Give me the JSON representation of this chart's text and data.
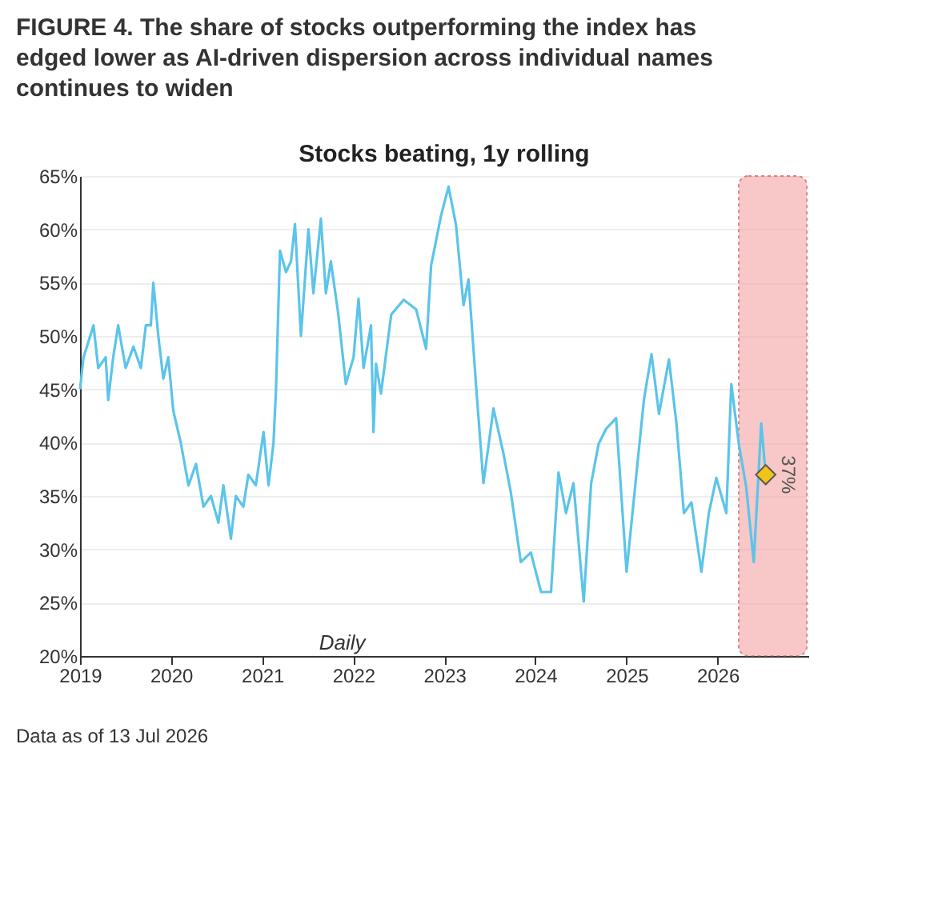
{
  "chart_data": {
    "type": "line",
    "title": "FIGURE 4. The share of stocks outperforming the index has edged lower as AI-driven dispersion across individual names continues to widen",
    "subtitle": "Stocks beating, 1y rolling",
    "series": [
      {
        "color": "#5bc4ea",
        "marker": "none",
        "line_style": "solid",
        "x": [
          "2019-01-01",
          "2019-01-15",
          "2019-02-24",
          "2019-03-15",
          "2019-04-14",
          "2019-04-24",
          "2019-05-14",
          "2019-06-03",
          "2019-07-03",
          "2019-08-03",
          "2019-09-02",
          "2019-09-22",
          "2019-10-12",
          "2019-10-22",
          "2019-11-11",
          "2019-12-01",
          "2019-12-21",
          "2020-01-10",
          "2020-02-09",
          "2020-03-11",
          "2020-04-10",
          "2020-05-10",
          "2020-06-09",
          "2020-07-09",
          "2020-07-29",
          "2020-08-28",
          "2020-09-17",
          "2020-10-17",
          "2020-11-06",
          "2020-12-06",
          "2021-01-06",
          "2021-01-26",
          "2021-02-15",
          "2021-02-25",
          "2021-03-13",
          "2021-04-06",
          "2021-04-26",
          "2021-05-12",
          "2021-06-05",
          "2021-07-05",
          "2021-07-25",
          "2021-08-24",
          "2021-09-13",
          "2021-10-03",
          "2021-11-02",
          "2021-12-02",
          "2022-01-02",
          "2022-01-22",
          "2022-02-11",
          "2022-03-13",
          "2022-03-23",
          "2022-04-02",
          "2022-04-22",
          "2022-06-02",
          "2022-07-22",
          "2022-09-10",
          "2022-10-20",
          "2022-11-09",
          "2022-12-19",
          "2023-01-18",
          "2023-02-17",
          "2023-03-19",
          "2023-04-08",
          "2023-05-08",
          "2023-06-07",
          "2023-07-17",
          "2023-08-26",
          "2023-09-25",
          "2023-11-04",
          "2023-12-14",
          "2024-01-24",
          "2024-03-04",
          "2024-04-03",
          "2024-05-03",
          "2024-06-02",
          "2024-07-13",
          "2024-08-12",
          "2024-09-11",
          "2024-10-11",
          "2024-11-20",
          "2025-01-01",
          "2025-02-10",
          "2025-03-12",
          "2025-04-11",
          "2025-05-11",
          "2025-06-20",
          "2025-07-20",
          "2025-08-19",
          "2025-09-18",
          "2025-10-28",
          "2025-11-27",
          "2025-12-27",
          "2026-02-05",
          "2026-02-25",
          "2026-03-27",
          "2026-04-26",
          "2026-05-26",
          "2026-06-25",
          "2026-07-13"
        ],
        "values": [
          45,
          48,
          51,
          47,
          48,
          44,
          48,
          51,
          47,
          49,
          47,
          51,
          51,
          55,
          50,
          46,
          48,
          43,
          40,
          36,
          38,
          34,
          35,
          32.5,
          36,
          31,
          35,
          34,
          37,
          36,
          41,
          36,
          40,
          45,
          58,
          56,
          57,
          60.5,
          50,
          60,
          54,
          61,
          54,
          57,
          52,
          45.5,
          48,
          53.5,
          47,
          51,
          41,
          47.4,
          44.6,
          52,
          53.4,
          52.5,
          48.8,
          56.6,
          61.3,
          64,
          60.4,
          52.9,
          55.3,
          45.5,
          36.2,
          43.2,
          39,
          35.3,
          28.8,
          29.7,
          26,
          26,
          37.2,
          33.4,
          36.2,
          25.1,
          36.2,
          39.9,
          41.3,
          42.3,
          27.9,
          37.2,
          44.1,
          48.3,
          42.7,
          47.8,
          41.8,
          33.4,
          34.4,
          27.9,
          33.4,
          36.7,
          33.4,
          45.5,
          39.9,
          35.8,
          28.8,
          41.8,
          37
        ]
      },
      {
        "type": "scatter",
        "color": "#f0c419",
        "marker": "diamond",
        "x": [
          "2026-07-13"
        ],
        "values": [
          37
        ]
      }
    ],
    "xlim": [
      "2019-01-01",
      "2026-12-31"
    ],
    "xticks": [
      {
        "value": "2019-01-01",
        "label": "2019"
      },
      {
        "value": "2020-01-01",
        "label": "2020"
      },
      {
        "value": "2021-01-01",
        "label": "2021"
      },
      {
        "value": "2022-01-01",
        "label": "2022"
      },
      {
        "value": "2023-01-01",
        "label": "2023"
      },
      {
        "value": "2024-01-01",
        "label": "2024"
      },
      {
        "value": "2025-01-01",
        "label": "2025"
      },
      {
        "value": "2026-01-01",
        "label": "2026"
      }
    ],
    "ylim": [
      20,
      65
    ],
    "yticks": [
      {
        "value": 20,
        "label": "20%"
      },
      {
        "value": 25,
        "label": "25%"
      },
      {
        "value": 30,
        "label": "30%"
      },
      {
        "value": 35,
        "label": "35%"
      },
      {
        "value": 40,
        "label": "40%"
      },
      {
        "value": 45,
        "label": "45%"
      },
      {
        "value": 50,
        "label": "50%"
      },
      {
        "value": 55,
        "label": "55%"
      },
      {
        "value": 60,
        "label": "60%"
      },
      {
        "value": 65,
        "label": "65%"
      }
    ],
    "grid": "y",
    "bands": [
      {
        "axis": "x",
        "from": "2026-03-27",
        "to": "2026-12-25",
        "color": "#f4a3a3"
      }
    ],
    "annotations": [
      {
        "text": "37%",
        "x": "2026-07-13",
        "y": 37
      },
      "Daily",
      "Data as of 13 Jul 2026"
    ]
  }
}
